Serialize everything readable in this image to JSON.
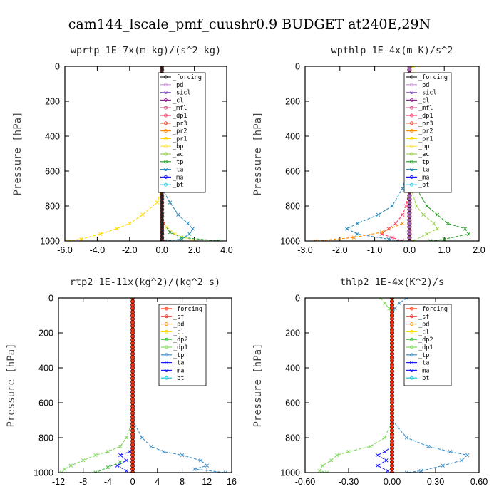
{
  "figure_title": "cam144_lscale_pmf_cuushr0.9  BUDGET at240E,29N",
  "colors": {
    "forcing": "#222222",
    "pd": "#c99ad6",
    "sicl": "#9a66cc",
    "cl": "#8a2a8a",
    "mfl": "#c8286e",
    "dp1": "#ff3b6b",
    "pr3": "#e8322a",
    "pr2": "#ff8c00",
    "pr1": "#ffd800",
    "bp": "#ffe44d",
    "ac": "#9ad048",
    "tp": "#2aa02a",
    "ta": "#2a8ab8",
    "ma": "#1a1aff",
    "bt": "#19c8d2",
    "sf": "#ff2a00",
    "dp2": "#2fc02f",
    "dp1b": "#7fd85a",
    "tp2": "#3a8ec8",
    "bt2": "#16c4d8"
  },
  "chart_data": [
    {
      "type": "line",
      "title": "wprtp  1E-7x(m kg)/(s^2 kg)",
      "xlabel": "",
      "ylabel": "Pressure [hPa]",
      "xlim": [
        -6,
        4
      ],
      "ylim": [
        1000,
        0
      ],
      "xticks": [
        -6,
        -4,
        -2,
        0,
        2,
        4
      ],
      "xtick_labels": [
        "-6.0",
        "-4.0",
        "-2.0",
        "0.0",
        "2.0",
        "4.0"
      ],
      "yticks": [
        0,
        200,
        400,
        600,
        800,
        1000
      ],
      "ytick_labels": [
        "0",
        "200",
        "400",
        "600",
        "800",
        "1000"
      ],
      "legend": [
        "_forcing",
        "_pd",
        "_sicl",
        "_cl",
        "_mfl",
        "_dp1",
        "_pr3",
        "_pr2",
        "_pr1",
        "_bp",
        "_ac",
        "_tp",
        "_ta",
        "_ma",
        "_bt"
      ],
      "legend_keys": [
        "forcing",
        "pd",
        "sicl",
        "cl",
        "mfl",
        "dp1",
        "pr3",
        "pr2",
        "pr1",
        "bp",
        "ac",
        "tp",
        "ta",
        "ma",
        "bt"
      ],
      "legend_position": "top-right",
      "series": [
        {
          "name": "_forcing",
          "key": "forcing",
          "p": [
            0,
            1000
          ],
          "x": [
            0,
            0
          ],
          "marker": "o",
          "thick": true
        },
        {
          "name": "_pr1",
          "key": "pr1",
          "p": [
            700,
            780,
            850,
            900,
            930,
            960,
            990,
            1000
          ],
          "x": [
            0,
            -0.3,
            -1.2,
            -2.0,
            -2.8,
            -3.8,
            -5.0,
            -6.0
          ]
        },
        {
          "name": "_ta",
          "key": "ta",
          "p": [
            700,
            780,
            850,
            900,
            930,
            960,
            990,
            1000
          ],
          "x": [
            0,
            0.5,
            1.0,
            1.6,
            1.9,
            1.7,
            1.2,
            0.2
          ]
        },
        {
          "name": "_tp",
          "key": "tp",
          "p": [
            900,
            950,
            980,
            1000
          ],
          "x": [
            0.1,
            0.5,
            1.2,
            3.5
          ]
        },
        {
          "name": "_bp",
          "key": "bp",
          "p": [
            920,
            960,
            1000
          ],
          "x": [
            0.3,
            0.8,
            2.0
          ]
        },
        {
          "name": "_pr3",
          "key": "pr3",
          "p": [
            900,
            1000
          ],
          "x": [
            0.1,
            0.1
          ]
        }
      ]
    },
    {
      "type": "line",
      "title": "wpthlp  1E-4x(m K)/s^2",
      "xlabel": "",
      "ylabel": "Pressure [hPa]",
      "xlim": [
        -3,
        2
      ],
      "ylim": [
        1000,
        0
      ],
      "xticks": [
        -3,
        -2,
        -1,
        0,
        1,
        2
      ],
      "xtick_labels": [
        "-3.0",
        "-2.0",
        "-1.0",
        "0.0",
        "1.0",
        "2.0"
      ],
      "yticks": [
        0,
        200,
        400,
        600,
        800,
        1000
      ],
      "ytick_labels": [
        "0",
        "200",
        "400",
        "600",
        "800",
        "1000"
      ],
      "legend": [
        "_forcing",
        "_pd",
        "_sicl",
        "_cl",
        "_mfl",
        "_dp1",
        "_pr3",
        "_pr2",
        "_pr1",
        "_bp",
        "_ac",
        "_tp",
        "_ta",
        "_ma",
        "_bt"
      ],
      "legend_keys": [
        "forcing",
        "pd",
        "sicl",
        "cl",
        "mfl",
        "dp1",
        "pr3",
        "pr2",
        "pr1",
        "bp",
        "ac",
        "tp",
        "ta",
        "ma",
        "bt"
      ],
      "legend_position": "top-right",
      "series": [
        {
          "name": "_sicl",
          "key": "sicl",
          "p": [
            0,
            1000
          ],
          "x": [
            0,
            0
          ],
          "marker": "o",
          "thick": true
        },
        {
          "name": "_pr1",
          "key": "pr1",
          "p": [
            0,
            50,
            100,
            200,
            400,
            600,
            700
          ],
          "x": [
            0.1,
            0.12,
            0.08,
            0.05,
            0.03,
            0.02,
            0.01
          ]
        },
        {
          "name": "_tp",
          "key": "tp",
          "p": [
            0,
            200,
            400,
            600,
            700,
            800,
            850,
            900,
            930,
            960,
            990,
            1000
          ],
          "x": [
            0.02,
            0.05,
            0.06,
            0.08,
            0.2,
            0.5,
            0.8,
            1.1,
            1.6,
            1.7,
            1.0,
            0.6
          ]
        },
        {
          "name": "_ac",
          "key": "ac",
          "p": [
            700,
            800,
            850,
            900,
            930,
            960,
            1000
          ],
          "x": [
            0.05,
            0.2,
            0.4,
            0.7,
            0.8,
            0.5,
            0.1
          ]
        },
        {
          "name": "_ta",
          "key": "ta",
          "p": [
            500,
            600,
            700,
            800,
            850,
            900,
            930,
            960,
            990,
            1000
          ],
          "x": [
            0,
            -0.05,
            -0.2,
            -0.5,
            -0.9,
            -1.5,
            -1.8,
            -1.5,
            -0.6,
            -0.2
          ]
        },
        {
          "name": "_dp1",
          "key": "dp1",
          "p": [
            700,
            800,
            850,
            900,
            930,
            960,
            980,
            1000
          ],
          "x": [
            0,
            -0.1,
            -0.2,
            -0.4,
            -0.6,
            -0.8,
            -0.5,
            -0.2
          ]
        },
        {
          "name": "_pr2",
          "key": "pr2",
          "p": [
            900,
            950,
            980,
            1000
          ],
          "x": [
            -0.2,
            -0.8,
            -1.6,
            -2.7
          ]
        }
      ]
    },
    {
      "type": "line",
      "title": "rtp2  1E-11x(kg^2)/(kg^2 s)",
      "xlabel": "",
      "ylabel": "Pressure [hPa]",
      "xlim": [
        -12,
        16
      ],
      "ylim": [
        1000,
        0
      ],
      "xticks": [
        -12,
        -8,
        -4,
        0,
        4,
        8,
        12,
        16
      ],
      "xtick_labels": [
        "-12",
        "-8",
        "-4",
        "0",
        "4",
        "8",
        "12",
        "16"
      ],
      "yticks": [
        0,
        200,
        400,
        600,
        800,
        1000
      ],
      "ytick_labels": [
        "0",
        "200",
        "400",
        "600",
        "800",
        "1000"
      ],
      "legend": [
        "_forcing",
        "_sf",
        "_pd",
        "_cl",
        "_dp2",
        "_dp1",
        "_tp",
        "_ta",
        "_ma",
        "_bt"
      ],
      "legend_keys": [
        "sf",
        "pr3",
        "pr2",
        "pr1",
        "dp2",
        "dp1b",
        "tp2",
        "ma",
        "ma",
        "bt2"
      ],
      "legend_position": "top-right",
      "series": [
        {
          "name": "_forcing",
          "key": "sf",
          "p": [
            0,
            1000
          ],
          "x": [
            0,
            0
          ],
          "marker": "o",
          "thick": true
        },
        {
          "name": "_dp1",
          "key": "dp1b",
          "p": [
            700,
            800,
            850,
            880,
            900,
            930,
            960,
            980,
            1000
          ],
          "x": [
            0,
            -1,
            -2,
            -4,
            -6,
            -8,
            -10,
            -11,
            -11.5
          ]
        },
        {
          "name": "_tp",
          "key": "tp2",
          "p": [
            700,
            800,
            850,
            880,
            900,
            930,
            960,
            980,
            1000
          ],
          "x": [
            0,
            1.5,
            3,
            5,
            8,
            11,
            12,
            10,
            15
          ]
        },
        {
          "name": "_ta",
          "key": "ma",
          "p": [
            850,
            880,
            900,
            930,
            960,
            990
          ],
          "x": [
            0,
            -0.5,
            -2,
            -1,
            -2.5,
            -1
          ]
        },
        {
          "name": "_dp2",
          "key": "dp2",
          "p": [
            940,
            970,
            1000
          ],
          "x": [
            -2,
            -4,
            -6
          ]
        }
      ]
    },
    {
      "type": "line",
      "title": "thlp2  1E-4x(K^2)/s",
      "xlabel": "",
      "ylabel": "Pressure [hPa]",
      "xlim": [
        -0.6,
        0.6
      ],
      "ylim": [
        1000,
        0
      ],
      "xticks": [
        -0.6,
        -0.3,
        0,
        0.3,
        0.6
      ],
      "xtick_labels": [
        "-0.60",
        "-0.30",
        "0.00",
        "0.30",
        "0.60"
      ],
      "yticks": [
        0,
        200,
        400,
        600,
        800,
        1000
      ],
      "ytick_labels": [
        "0",
        "200",
        "400",
        "600",
        "800",
        "1000"
      ],
      "legend": [
        "_forcing",
        "_sf",
        "_pd",
        "_cl",
        "_dp2",
        "_dp1",
        "_tp",
        "_ta",
        "_ma",
        "_bt"
      ],
      "legend_keys": [
        "sf",
        "pr3",
        "pr2",
        "pr1",
        "dp2",
        "dp1b",
        "tp2",
        "ma",
        "ma",
        "bt2"
      ],
      "legend_position": "top-right",
      "series": [
        {
          "name": "_forcing",
          "key": "sf",
          "p": [
            0,
            1000
          ],
          "x": [
            0,
            0
          ],
          "marker": "o",
          "thick": true
        },
        {
          "name": "_dp1",
          "key": "dp1b",
          "p": [
            0,
            30,
            60,
            100,
            700,
            800,
            850,
            880,
            900,
            930,
            960,
            990,
            1000
          ],
          "x": [
            -0.08,
            -0.05,
            -0.02,
            0,
            0,
            -0.05,
            -0.15,
            -0.3,
            -0.38,
            -0.42,
            -0.48,
            -0.5,
            -0.45
          ]
        },
        {
          "name": "_tp",
          "key": "tp2",
          "p": [
            0,
            30,
            60,
            100,
            700,
            800,
            850,
            880,
            900,
            930,
            960,
            990,
            1000
          ],
          "x": [
            0.1,
            0.05,
            0.02,
            0,
            0,
            0.1,
            0.25,
            0.4,
            0.52,
            0.48,
            0.35,
            0.2,
            0.1
          ]
        },
        {
          "name": "_ta",
          "key": "ma",
          "p": [
            850,
            880,
            900,
            930,
            960,
            990
          ],
          "x": [
            0,
            -0.05,
            -0.1,
            -0.04,
            -0.1,
            -0.03
          ]
        }
      ]
    }
  ]
}
